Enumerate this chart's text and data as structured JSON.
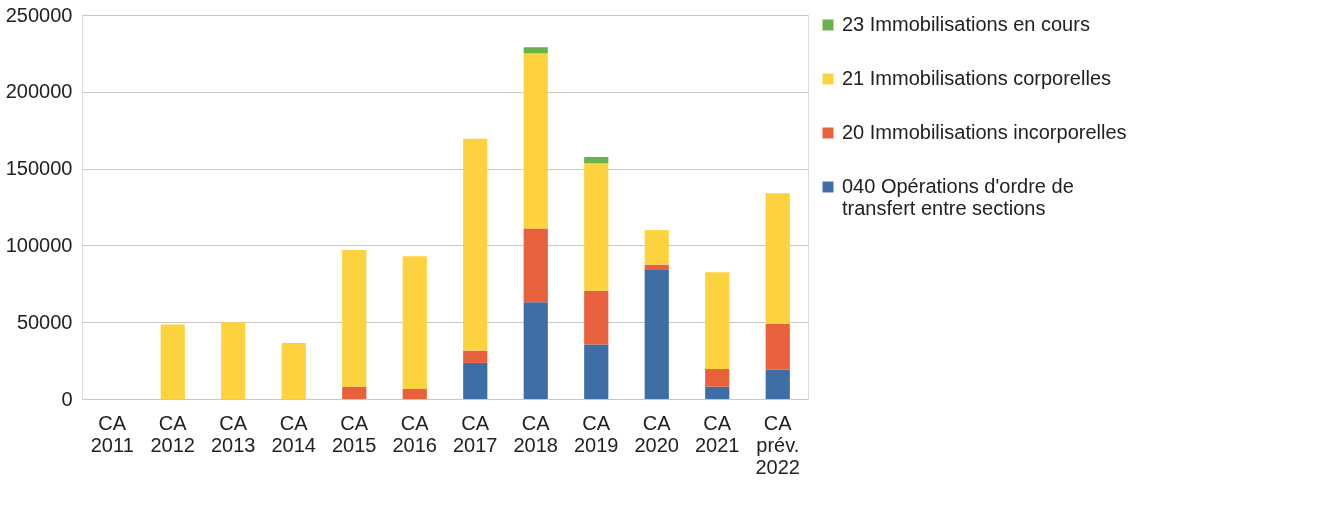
{
  "chart_data": {
    "type": "bar",
    "stacked": true,
    "categories": [
      "CA 2011",
      "CA 2012",
      "CA 2013",
      "CA 2014",
      "CA 2015",
      "CA 2016",
      "CA 2017",
      "CA 2018",
      "CA 2019",
      "CA 2020",
      "CA 2021",
      "CA prév. 2022"
    ],
    "series": [
      {
        "name": "040 Opérations d'ordre de transfert entre sections",
        "color": "#3f6ea6",
        "values": [
          0,
          0,
          0,
          0,
          0,
          0,
          23500,
          63000,
          35500,
          84000,
          8000,
          19000
        ]
      },
      {
        "name": "20 Immobilisations incorporelles",
        "color": "#e8603c",
        "values": [
          0,
          0,
          0,
          0,
          8000,
          6500,
          8000,
          48000,
          35000,
          3500,
          11500,
          30000
        ]
      },
      {
        "name": "21 Immobilisations corporelles",
        "color": "#fcd33f",
        "values": [
          0,
          48500,
          50000,
          36500,
          89000,
          86500,
          138000,
          114000,
          83000,
          22500,
          63000,
          85000
        ]
      },
      {
        "name": "23 Immobilisations en cours",
        "color": "#6ab04c",
        "values": [
          0,
          0,
          0,
          0,
          0,
          0,
          0,
          4000,
          4000,
          0,
          0,
          0
        ]
      }
    ],
    "ylim": [
      0,
      250000
    ],
    "yticks": [
      0,
      50000,
      100000,
      150000,
      200000,
      250000
    ],
    "grid": "y",
    "legend": "right"
  }
}
